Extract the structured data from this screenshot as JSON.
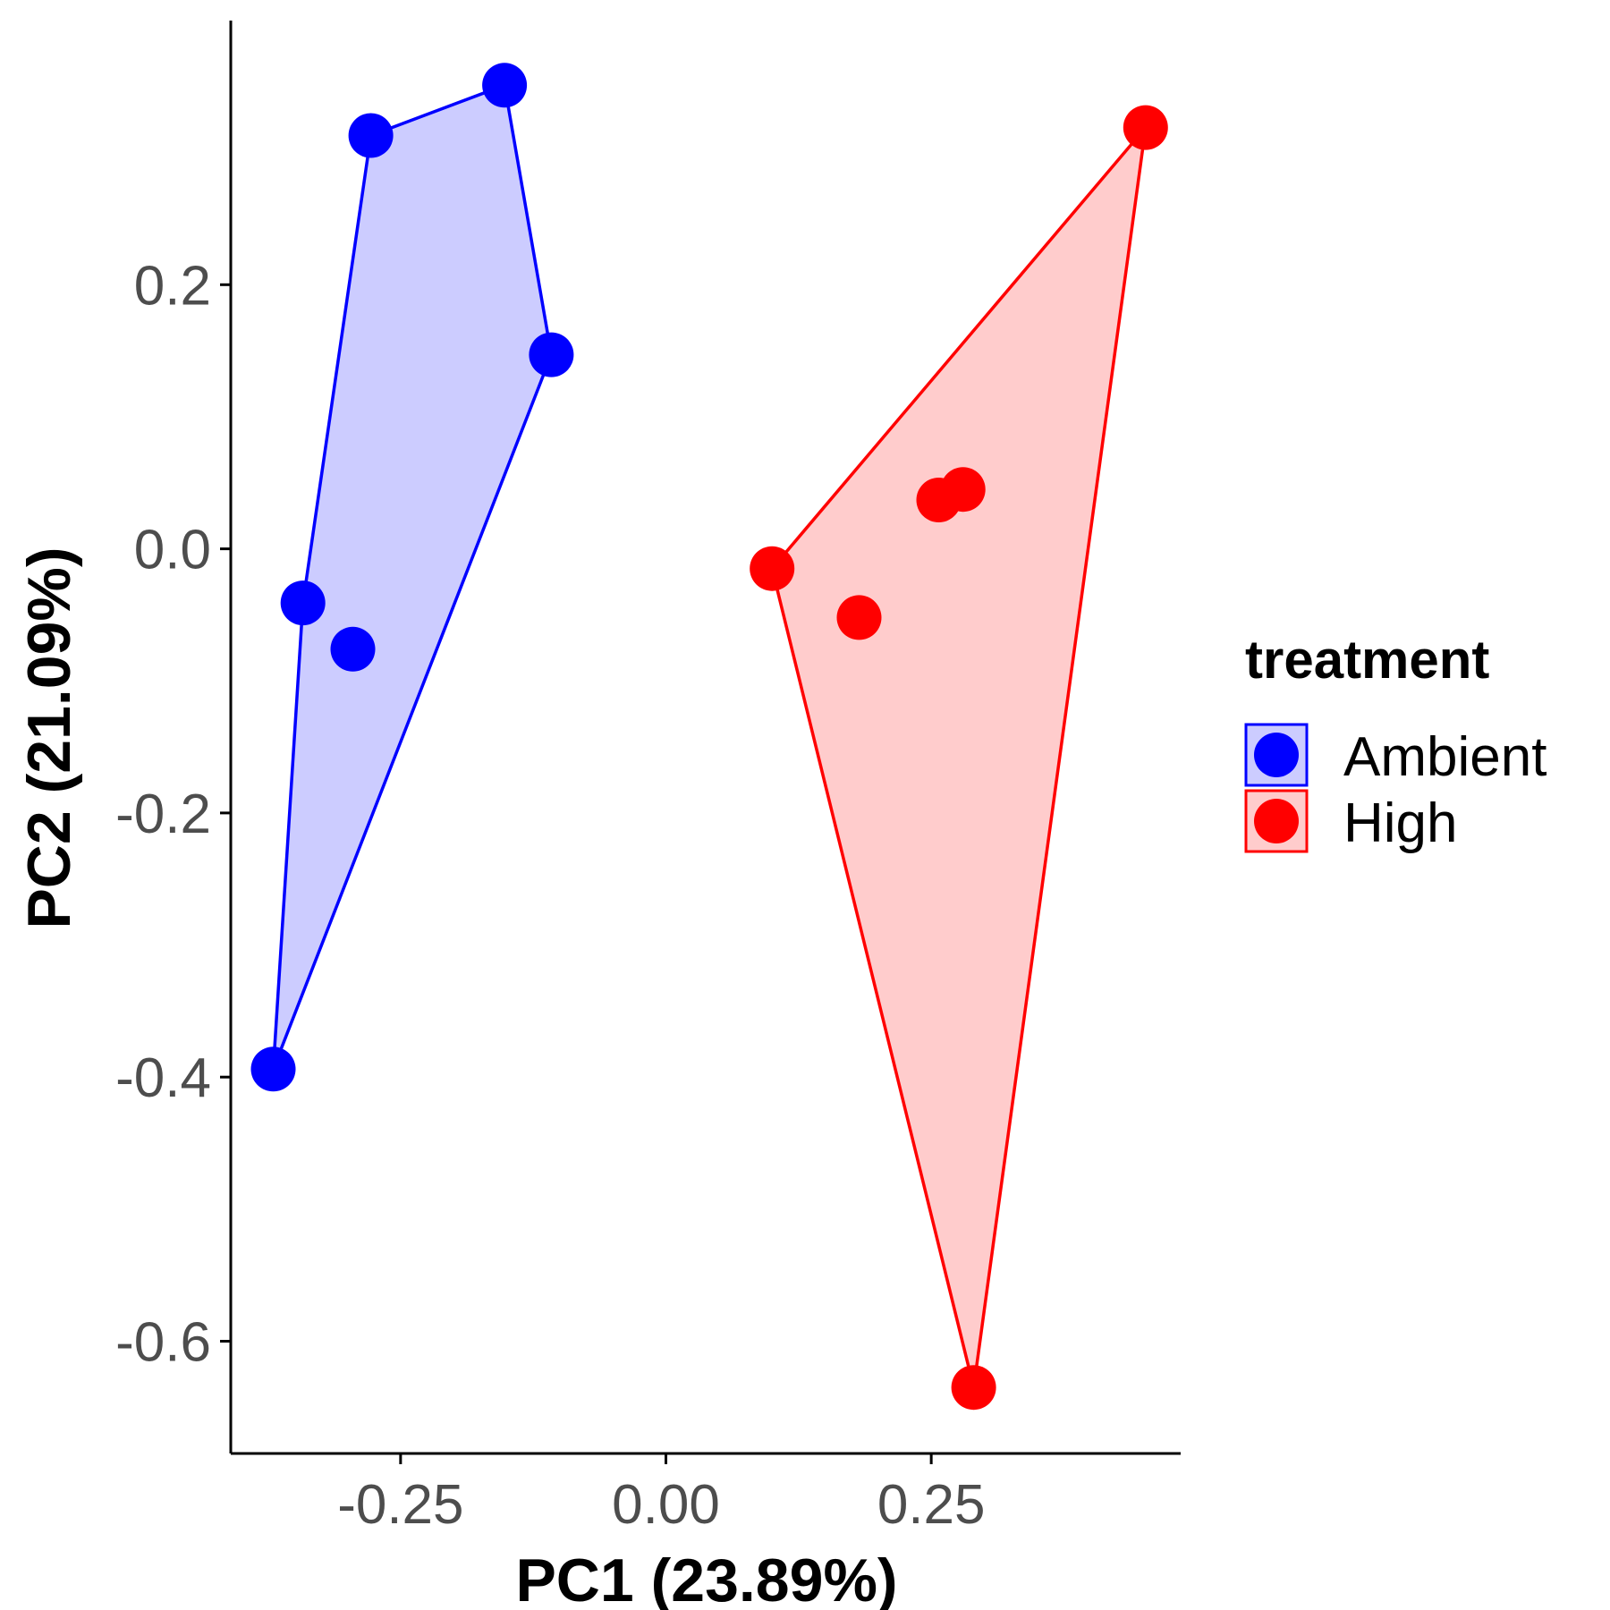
{
  "chart_data": {
    "type": "scatter",
    "title": "",
    "xlabel": "PC1 (23.89%)",
    "ylabel": "PC2 (21.09%)",
    "xlim": [
      -0.41,
      0.485
    ],
    "ylim": [
      -0.685,
      0.4
    ],
    "x_ticks": [
      -0.25,
      0.0,
      0.25
    ],
    "x_tick_labels": [
      "-0.25",
      "0.00",
      "0.25"
    ],
    "y_ticks": [
      0.2,
      0.0,
      -0.2,
      -0.4,
      -0.6
    ],
    "y_tick_labels": [
      "0.2",
      "0.0",
      "-0.2",
      "-0.4",
      "-0.6"
    ],
    "grid": false,
    "hulls": true,
    "legend": {
      "title": "treatment",
      "position": "right"
    },
    "series": [
      {
        "name": "Ambient",
        "color": "#0000ff",
        "fill": "#0000ff",
        "points": [
          {
            "x": -0.37,
            "y": -0.394
          },
          {
            "x": -0.342,
            "y": -0.041
          },
          {
            "x": -0.295,
            "y": -0.076
          },
          {
            "x": -0.278,
            "y": 0.313
          },
          {
            "x": -0.152,
            "y": 0.351
          },
          {
            "x": -0.108,
            "y": 0.147
          }
        ],
        "hull_order": [
          0,
          1,
          3,
          4,
          5
        ]
      },
      {
        "name": "High",
        "color": "#ff0000",
        "fill": "#ff0000",
        "points": [
          {
            "x": 0.1,
            "y": -0.015
          },
          {
            "x": 0.182,
            "y": -0.052
          },
          {
            "x": 0.257,
            "y": 0.037
          },
          {
            "x": 0.28,
            "y": 0.045
          },
          {
            "x": 0.29,
            "y": -0.635
          },
          {
            "x": 0.452,
            "y": 0.319
          }
        ],
        "hull_order": [
          0,
          5,
          4
        ]
      }
    ]
  }
}
